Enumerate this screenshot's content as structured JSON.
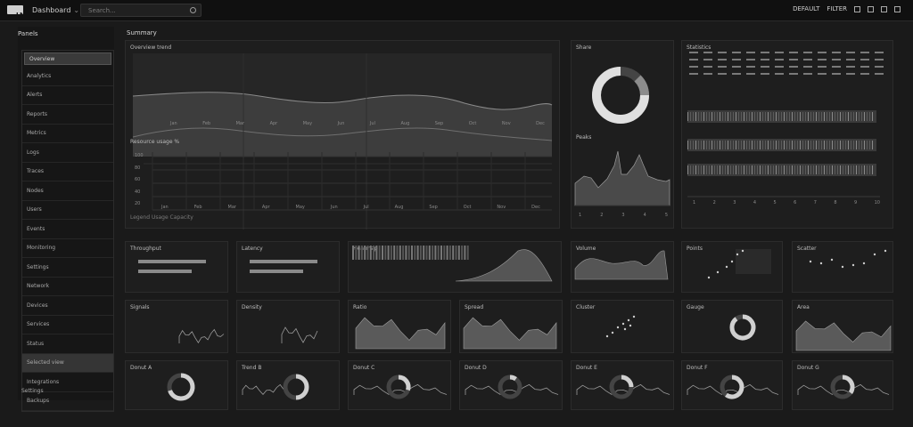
{
  "topbar": {
    "logo_text": "LN",
    "app_title": "Dashboard",
    "search_placeholder": "Search...",
    "right_labels": [
      "DEFAULT",
      "FILTER"
    ]
  },
  "sidebar": {
    "title": "Panels",
    "items": [
      "Overview",
      "Analytics",
      "Alerts",
      "Reports",
      "Metrics",
      "Logs",
      "Traces",
      "Nodes",
      "Users",
      "Events",
      "Monitoring",
      "Settings",
      "Network",
      "Devices",
      "Services",
      "Status",
      "Selected view",
      "Integrations",
      "Backups"
    ],
    "footer": "Settings"
  },
  "main": {
    "section_title": "Summary"
  },
  "panels": {
    "p1_title": "Overview trend",
    "p1_ticks": [
      "Jan",
      "Feb",
      "Mar",
      "Apr",
      "May",
      "Jun",
      "Jul",
      "Aug",
      "Sep",
      "Oct",
      "Nov",
      "Dec"
    ],
    "p2_title": "Resource usage %",
    "p2_yticks": [
      "100",
      "80",
      "60",
      "40",
      "20"
    ],
    "p2_ticks": [
      "Jan",
      "Feb",
      "Mar",
      "Apr",
      "May",
      "Jun",
      "Jul",
      "Aug",
      "Sep",
      "Oct",
      "Nov",
      "Dec"
    ],
    "p2_legend": "Legend Usage Capacity",
    "donut_title": "Share",
    "spike_title": "Peaks",
    "spike_ticks": [
      "1",
      "2",
      "3",
      "4",
      "5"
    ],
    "table_title": "Statistics",
    "table_ticks": [
      "1",
      "2",
      "3",
      "4",
      "5",
      "6",
      "7",
      "8",
      "9",
      "10"
    ],
    "r2": [
      "Throughput",
      "Latency",
      "Heatmap",
      "Volume",
      "Points",
      "Scatter"
    ],
    "r3": [
      "Signals",
      "Density",
      "Ratio",
      "Spread",
      "Cluster",
      "Gauge",
      "Area"
    ],
    "r4": [
      "Donut A",
      "Trend B",
      "Donut C",
      "Donut D",
      "Donut E",
      "Donut F",
      "Donut G"
    ]
  },
  "colors": {
    "bg": "#1a1a1a",
    "panel": "#1e1e1e",
    "accent": "#d9d9d9",
    "grid": "#3a3a3a"
  }
}
